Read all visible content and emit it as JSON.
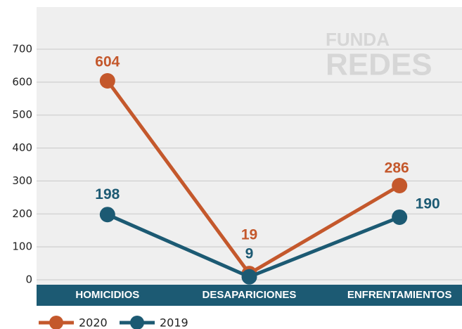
{
  "chart_data": {
    "type": "line",
    "watermark": [
      "FUNDA",
      "REDES"
    ],
    "categories": [
      "HOMICIDIOS",
      "DESAPARICIONES",
      "ENFRENTAMIENTOS"
    ],
    "series": [
      {
        "name": "2020",
        "color": "#c4582c",
        "values": [
          604,
          19,
          286
        ]
      },
      {
        "name": "2019",
        "color": "#1c5a73",
        "values": [
          198,
          9,
          190
        ]
      }
    ],
    "ylim": [
      0,
      700
    ],
    "yticks": [
      0,
      100,
      200,
      300,
      400,
      500,
      600,
      700
    ],
    "grid": true
  }
}
